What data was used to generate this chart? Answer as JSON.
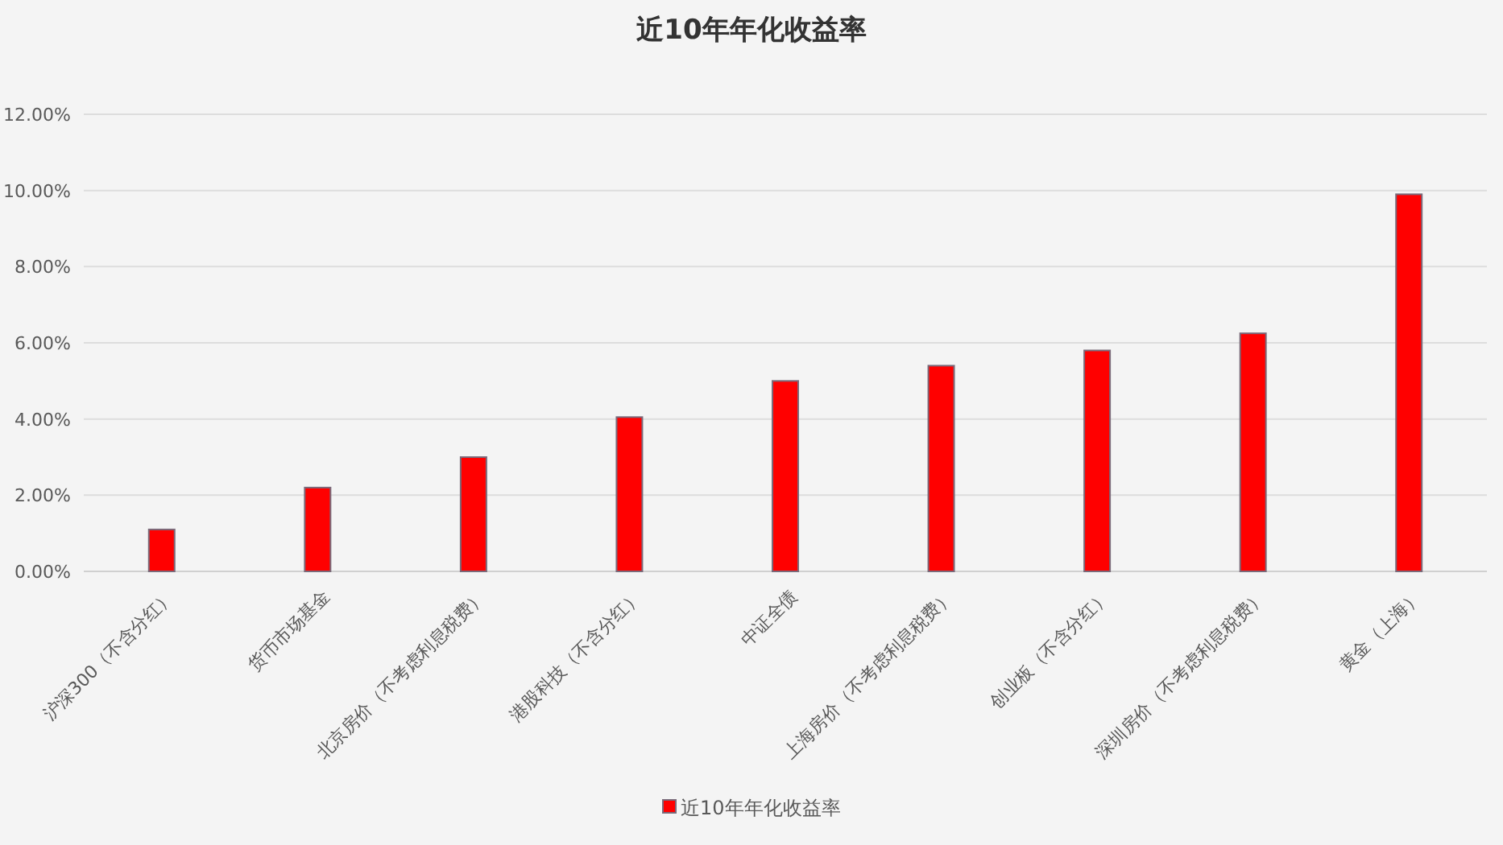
{
  "chart_data": {
    "type": "bar",
    "title": "近10年年化收益率",
    "categories": [
      "沪深300（不含分红）",
      "货币市场基金",
      "北京房价（不考虑利息税费）",
      "港股科技（不含分红）",
      "中证全债",
      "上海房价（不考虑利息税费）",
      "创业板（不含分红）",
      "深圳房价（不考虑利息税费）",
      "黄金（上海）"
    ],
    "series": [
      {
        "name": "近10年年化收益率",
        "color": "#ff0000",
        "values": [
          1.1,
          2.2,
          3.0,
          4.05,
          5.0,
          5.4,
          5.8,
          6.25,
          9.9
        ]
      }
    ],
    "ylim": [
      0,
      12
    ],
    "yticks": [
      {
        "value": 0,
        "label": "0.00%"
      },
      {
        "value": 2,
        "label": "2.00%"
      },
      {
        "value": 4,
        "label": "4.00%"
      },
      {
        "value": 6,
        "label": "6.00%"
      },
      {
        "value": 8,
        "label": "8.00%"
      },
      {
        "value": 10,
        "label": "10.00%"
      },
      {
        "value": 12,
        "label": "12.00%"
      }
    ],
    "grid": "y",
    "legend": "bottom"
  }
}
